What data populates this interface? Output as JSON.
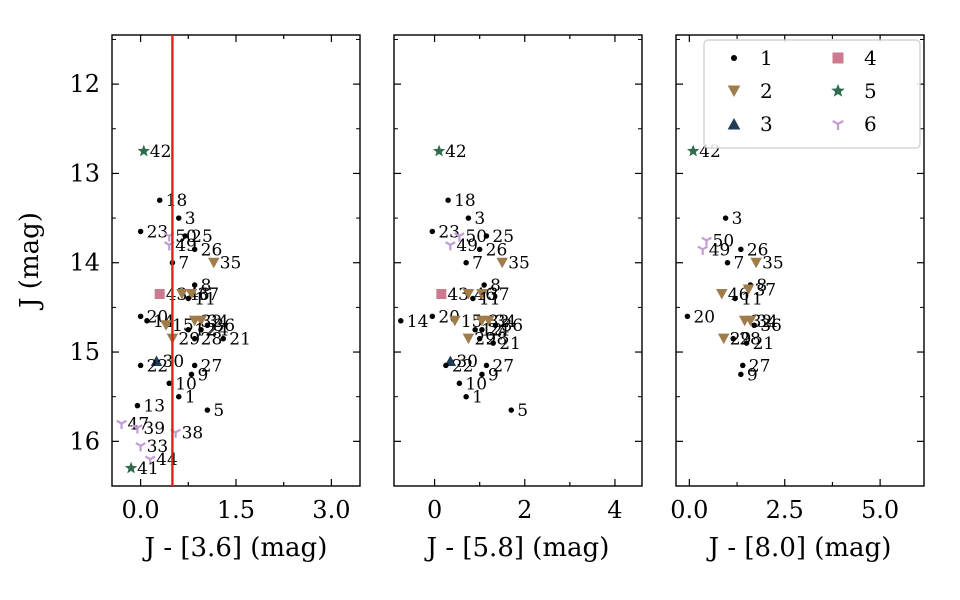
{
  "chart_data": {
    "type": "scatter",
    "shared_ylabel": "J (mag)",
    "ylim": [
      16.5,
      11.45
    ],
    "y_ticks": [
      12,
      13,
      14,
      15,
      16
    ],
    "y_tick_labels": [
      "12",
      "13",
      "14",
      "15",
      "16"
    ],
    "y_inverted": true,
    "groups": [
      {
        "id": "1",
        "label": "1",
        "marker": "circle",
        "color": "#000000"
      },
      {
        "id": "2",
        "label": "2",
        "marker": "triangle-down",
        "color": "#a07c4a"
      },
      {
        "id": "3",
        "label": "3",
        "marker": "triangle-up",
        "color": "#1f3b57"
      },
      {
        "id": "4",
        "label": "4",
        "marker": "square",
        "color": "#cc7a8f"
      },
      {
        "id": "5",
        "label": "5",
        "marker": "star",
        "color": "#2f6b4c"
      },
      {
        "id": "6",
        "label": "6",
        "marker": "tri-down",
        "color": "#c49bd6"
      }
    ],
    "legend_position": "top-right of third panel",
    "panels": [
      {
        "xlabel": "J - [3.6] (mag)",
        "xlim": [
          -0.45,
          3.45
        ],
        "x_ticks": [
          0.0,
          1.5,
          3.0
        ],
        "x_tick_labels": [
          "0.0",
          "1.5",
          "3.0"
        ],
        "vline": {
          "x": 0.5,
          "color": "#e0201a"
        },
        "points": [
          {
            "id": "42",
            "x": 0.05,
            "y": 12.75,
            "group": "5"
          },
          {
            "id": "18",
            "x": 0.3,
            "y": 13.3,
            "group": "1"
          },
          {
            "id": "3",
            "x": 0.6,
            "y": 13.5,
            "group": "1"
          },
          {
            "id": "23",
            "x": 0.0,
            "y": 13.65,
            "group": "1"
          },
          {
            "id": "50",
            "x": 0.45,
            "y": 13.7,
            "group": "6"
          },
          {
            "id": "25",
            "x": 0.7,
            "y": 13.7,
            "group": "1"
          },
          {
            "id": "49",
            "x": 0.45,
            "y": 13.8,
            "group": "6"
          },
          {
            "id": "26",
            "x": 0.85,
            "y": 13.85,
            "group": "1"
          },
          {
            "id": "7",
            "x": 0.5,
            "y": 14.0,
            "group": "1"
          },
          {
            "id": "35",
            "x": 1.15,
            "y": 14.0,
            "group": "2"
          },
          {
            "id": "8",
            "x": 0.85,
            "y": 14.25,
            "group": "1"
          },
          {
            "id": "43",
            "x": 0.3,
            "y": 14.35,
            "group": "4"
          },
          {
            "id": "46",
            "x": 0.65,
            "y": 14.35,
            "group": "2"
          },
          {
            "id": "37",
            "x": 0.8,
            "y": 14.35,
            "group": "2"
          },
          {
            "id": "11",
            "x": 0.75,
            "y": 14.4,
            "group": "1"
          },
          {
            "id": "20",
            "x": 0.0,
            "y": 14.6,
            "group": "1"
          },
          {
            "id": "14",
            "x": 0.1,
            "y": 14.65,
            "group": "1"
          },
          {
            "id": "15",
            "x": 0.4,
            "y": 14.7,
            "group": "2"
          },
          {
            "id": "32",
            "x": 0.85,
            "y": 14.65,
            "group": "2"
          },
          {
            "id": "34",
            "x": 0.95,
            "y": 14.65,
            "group": "2"
          },
          {
            "id": "36",
            "x": 1.05,
            "y": 14.7,
            "group": "1"
          },
          {
            "id": "12",
            "x": 0.75,
            "y": 14.75,
            "group": "1"
          },
          {
            "id": "24",
            "x": 0.95,
            "y": 14.75,
            "group": "1"
          },
          {
            "id": "29",
            "x": 0.5,
            "y": 14.85,
            "group": "2"
          },
          {
            "id": "28",
            "x": 0.85,
            "y": 14.85,
            "group": "1"
          },
          {
            "id": "21",
            "x": 1.3,
            "y": 14.85,
            "group": "1"
          },
          {
            "id": "30",
            "x": 0.25,
            "y": 15.1,
            "group": "3"
          },
          {
            "id": "22",
            "x": 0.0,
            "y": 15.15,
            "group": "1"
          },
          {
            "id": "27",
            "x": 0.85,
            "y": 15.15,
            "group": "1"
          },
          {
            "id": "9",
            "x": 0.8,
            "y": 15.25,
            "group": "1"
          },
          {
            "id": "10",
            "x": 0.45,
            "y": 15.35,
            "group": "1"
          },
          {
            "id": "1",
            "x": 0.6,
            "y": 15.5,
            "group": "1"
          },
          {
            "id": "13",
            "x": -0.05,
            "y": 15.6,
            "group": "1"
          },
          {
            "id": "5",
            "x": 1.05,
            "y": 15.65,
            "group": "1"
          },
          {
            "id": "47",
            "x": -0.3,
            "y": 15.8,
            "group": "6"
          },
          {
            "id": "39",
            "x": -0.05,
            "y": 15.85,
            "group": "6"
          },
          {
            "id": "38",
            "x": 0.55,
            "y": 15.9,
            "group": "6"
          },
          {
            "id": "33",
            "x": 0.0,
            "y": 16.05,
            "group": "6"
          },
          {
            "id": "44",
            "x": 0.15,
            "y": 16.2,
            "group": "6"
          },
          {
            "id": "41",
            "x": -0.15,
            "y": 16.3,
            "group": "5"
          }
        ]
      },
      {
        "xlabel": "J - [5.8] (mag)",
        "xlim": [
          -0.9,
          4.6
        ],
        "x_ticks": [
          0,
          2,
          4
        ],
        "x_tick_labels": [
          "0",
          "2",
          "4"
        ],
        "points": [
          {
            "id": "42",
            "x": 0.1,
            "y": 12.75,
            "group": "5"
          },
          {
            "id": "18",
            "x": 0.3,
            "y": 13.3,
            "group": "1"
          },
          {
            "id": "3",
            "x": 0.75,
            "y": 13.5,
            "group": "1"
          },
          {
            "id": "23",
            "x": -0.05,
            "y": 13.65,
            "group": "1"
          },
          {
            "id": "50",
            "x": 0.55,
            "y": 13.7,
            "group": "6"
          },
          {
            "id": "25",
            "x": 1.15,
            "y": 13.7,
            "group": "1"
          },
          {
            "id": "49",
            "x": 0.35,
            "y": 13.8,
            "group": "6"
          },
          {
            "id": "26",
            "x": 1.0,
            "y": 13.85,
            "group": "1"
          },
          {
            "id": "7",
            "x": 0.7,
            "y": 14.0,
            "group": "1"
          },
          {
            "id": "35",
            "x": 1.5,
            "y": 14.0,
            "group": "2"
          },
          {
            "id": "8",
            "x": 1.1,
            "y": 14.25,
            "group": "1"
          },
          {
            "id": "43",
            "x": 0.15,
            "y": 14.35,
            "group": "4"
          },
          {
            "id": "46",
            "x": 0.75,
            "y": 14.35,
            "group": "2"
          },
          {
            "id": "37",
            "x": 1.05,
            "y": 14.35,
            "group": "2"
          },
          {
            "id": "11",
            "x": 0.85,
            "y": 14.4,
            "group": "1"
          },
          {
            "id": "20",
            "x": -0.05,
            "y": 14.6,
            "group": "1"
          },
          {
            "id": "14",
            "x": -0.75,
            "y": 14.65,
            "group": "1"
          },
          {
            "id": "15",
            "x": 0.45,
            "y": 14.65,
            "group": "2"
          },
          {
            "id": "32",
            "x": 1.05,
            "y": 14.65,
            "group": "2"
          },
          {
            "id": "34",
            "x": 1.2,
            "y": 14.65,
            "group": "2"
          },
          {
            "id": "36",
            "x": 1.35,
            "y": 14.7,
            "group": "1"
          },
          {
            "id": "24",
            "x": 1.05,
            "y": 14.75,
            "group": "1"
          },
          {
            "id": "12",
            "x": 0.9,
            "y": 14.75,
            "group": "1"
          },
          {
            "id": "29",
            "x": 0.75,
            "y": 14.85,
            "group": "2"
          },
          {
            "id": "28",
            "x": 1.0,
            "y": 14.85,
            "group": "1"
          },
          {
            "id": "21",
            "x": 1.3,
            "y": 14.9,
            "group": "1"
          },
          {
            "id": "30",
            "x": 0.35,
            "y": 15.1,
            "group": "3"
          },
          {
            "id": "22",
            "x": 0.25,
            "y": 15.15,
            "group": "1"
          },
          {
            "id": "27",
            "x": 1.15,
            "y": 15.15,
            "group": "1"
          },
          {
            "id": "9",
            "x": 1.05,
            "y": 15.25,
            "group": "1"
          },
          {
            "id": "10",
            "x": 0.55,
            "y": 15.35,
            "group": "1"
          },
          {
            "id": "1",
            "x": 0.7,
            "y": 15.5,
            "group": "1"
          },
          {
            "id": "5",
            "x": 1.7,
            "y": 15.65,
            "group": "1"
          }
        ]
      },
      {
        "xlabel": "J - [8.0] (mag)",
        "xlim": [
          -0.35,
          6.15
        ],
        "x_ticks": [
          0.0,
          2.5,
          5.0
        ],
        "x_tick_labels": [
          "0.0",
          "2.5",
          "5.0"
        ],
        "points": [
          {
            "id": "42",
            "x": 0.1,
            "y": 12.75,
            "group": "5"
          },
          {
            "id": "3",
            "x": 0.95,
            "y": 13.5,
            "group": "1"
          },
          {
            "id": "50",
            "x": 0.45,
            "y": 13.75,
            "group": "6"
          },
          {
            "id": "49",
            "x": 0.35,
            "y": 13.85,
            "group": "6"
          },
          {
            "id": "26",
            "x": 1.35,
            "y": 13.85,
            "group": "1"
          },
          {
            "id": "7",
            "x": 1.0,
            "y": 14.0,
            "group": "1"
          },
          {
            "id": "35",
            "x": 1.75,
            "y": 14.0,
            "group": "2"
          },
          {
            "id": "8",
            "x": 1.6,
            "y": 14.25,
            "group": "1"
          },
          {
            "id": "46",
            "x": 0.85,
            "y": 14.35,
            "group": "2"
          },
          {
            "id": "37",
            "x": 1.55,
            "y": 14.3,
            "group": "2"
          },
          {
            "id": "11",
            "x": 1.2,
            "y": 14.4,
            "group": "1"
          },
          {
            "id": "20",
            "x": -0.05,
            "y": 14.6,
            "group": "1"
          },
          {
            "id": "32",
            "x": 1.45,
            "y": 14.65,
            "group": "2"
          },
          {
            "id": "34",
            "x": 1.6,
            "y": 14.65,
            "group": "2"
          },
          {
            "id": "36",
            "x": 1.7,
            "y": 14.7,
            "group": "1"
          },
          {
            "id": "29",
            "x": 0.9,
            "y": 14.85,
            "group": "2"
          },
          {
            "id": "28",
            "x": 1.15,
            "y": 14.85,
            "group": "1"
          },
          {
            "id": "21",
            "x": 1.5,
            "y": 14.9,
            "group": "1"
          },
          {
            "id": "27",
            "x": 1.4,
            "y": 15.15,
            "group": "1"
          },
          {
            "id": "9",
            "x": 1.35,
            "y": 15.25,
            "group": "1"
          }
        ]
      }
    ]
  }
}
